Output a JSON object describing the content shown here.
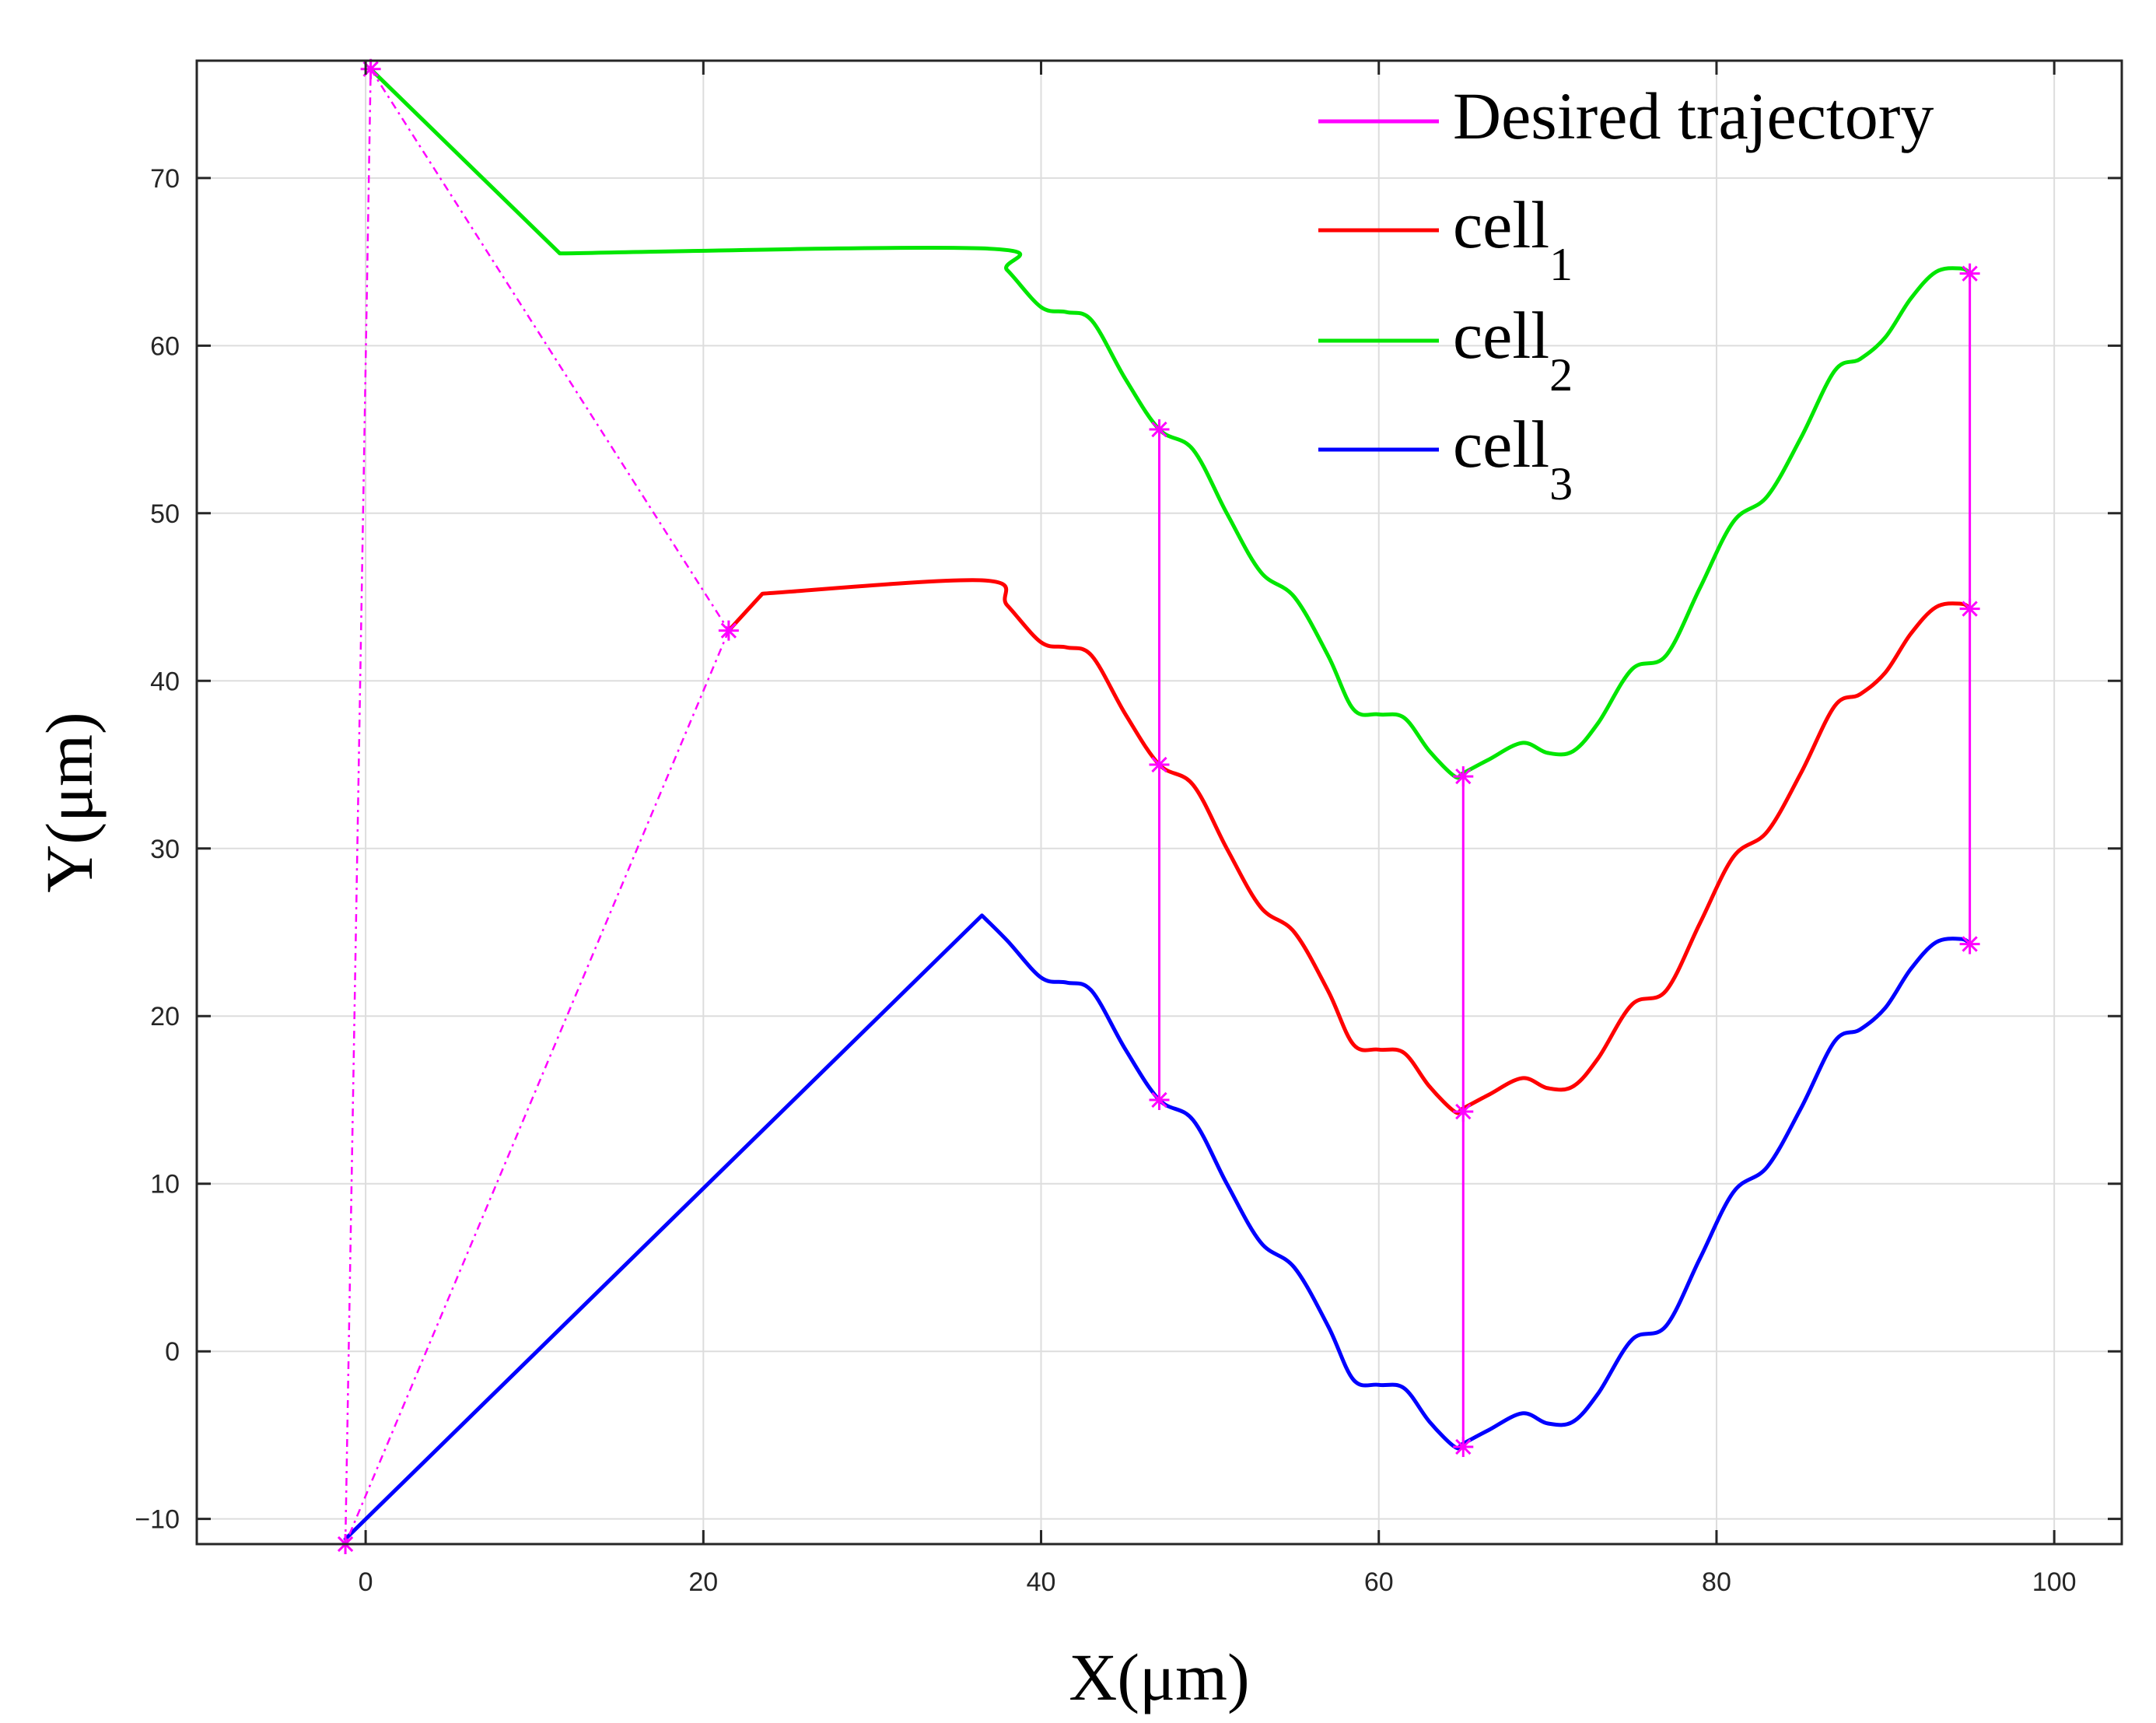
{
  "chart_data": {
    "type": "line",
    "title": "",
    "xlabel": "X(μm)",
    "ylabel": "Y(μm)",
    "xlim": [
      -10,
      104
    ],
    "ylim": [
      -11.5,
      77
    ],
    "grid": true,
    "legend_position": "top-right",
    "x_ticks": [
      0,
      20,
      40,
      60,
      80,
      100
    ],
    "y_ticks": [
      -10,
      0,
      10,
      20,
      30,
      40,
      50,
      60,
      70
    ],
    "legend": [
      {
        "key": "desired",
        "text": "Desired trajectory",
        "sub": ""
      },
      {
        "key": "cell1",
        "text": "cell",
        "sub": "1"
      },
      {
        "key": "cell2",
        "text": "cell",
        "sub": "2"
      },
      {
        "key": "cell3",
        "text": "cell",
        "sub": "3"
      }
    ],
    "series": [
      {
        "name": "cell_2",
        "key": "cell2",
        "color": "#00e600",
        "x": [
          0.3,
          11.5,
          36.5,
          38,
          40,
          41.5,
          43,
          45,
          47,
          49,
          51,
          53,
          55,
          57,
          58.5,
          60,
          61.5,
          63,
          64.5,
          65,
          66.5,
          68.5,
          70,
          71.5,
          73,
          75,
          77,
          79,
          81,
          83,
          85,
          87,
          88.5,
          90,
          91.5,
          93,
          94.5,
          95
        ],
        "y": [
          76.5,
          65.5,
          65.8,
          64.5,
          62.3,
          62.0,
          61.5,
          58.0,
          55.0,
          53.8,
          50.0,
          46.5,
          45.0,
          41.5,
          38.3,
          38.0,
          37.8,
          35.8,
          34.3,
          34.5,
          35.3,
          36.3,
          35.7,
          35.8,
          37.5,
          40.7,
          41.5,
          45.5,
          49.5,
          51.0,
          54.5,
          58.5,
          59.2,
          60.5,
          62.8,
          64.4,
          64.6,
          64.3
        ]
      },
      {
        "name": "cell_1",
        "key": "cell1",
        "color": "#ff0000",
        "x": [
          21.5,
          23.5,
          36.5,
          38,
          40,
          41.5,
          43,
          45,
          47,
          49,
          51,
          53,
          55,
          57,
          58.5,
          60,
          61.5,
          63,
          64.5,
          65,
          66.5,
          68.5,
          70,
          71.5,
          73,
          75,
          77,
          79,
          81,
          83,
          85,
          87,
          88.5,
          90,
          91.5,
          93,
          94.5,
          95
        ],
        "y": [
          43.0,
          45.2,
          46.0,
          44.5,
          42.3,
          42.0,
          41.5,
          38.0,
          35.0,
          33.8,
          30.0,
          26.5,
          25.0,
          21.5,
          18.3,
          18.0,
          17.8,
          15.8,
          14.3,
          14.5,
          15.3,
          16.3,
          15.7,
          15.8,
          17.5,
          20.7,
          21.5,
          25.5,
          29.5,
          31.0,
          34.5,
          38.5,
          39.2,
          40.5,
          42.8,
          44.4,
          44.6,
          44.3
        ]
      },
      {
        "name": "cell_3",
        "key": "cell3",
        "color": "#0000ff",
        "x": [
          -1.2,
          36.5,
          38,
          40,
          41.5,
          43,
          45,
          47,
          49,
          51,
          53,
          55,
          57,
          58.5,
          60,
          61.5,
          63,
          64.5,
          65,
          66.5,
          68.5,
          70,
          71.5,
          73,
          75,
          77,
          79,
          81,
          83,
          85,
          87,
          88.5,
          90,
          91.5,
          93,
          94.5,
          95
        ],
        "y": [
          -11.2,
          26.0,
          24.5,
          22.3,
          22.0,
          21.5,
          18.0,
          15.0,
          13.8,
          10.0,
          6.5,
          5.0,
          1.5,
          -1.7,
          -2.0,
          -2.2,
          -4.2,
          -5.7,
          -5.5,
          -4.7,
          -3.7,
          -4.3,
          -4.2,
          -2.5,
          0.7,
          1.5,
          5.5,
          9.5,
          11.0,
          14.5,
          18.5,
          19.2,
          20.5,
          22.8,
          24.4,
          24.6,
          24.3
        ]
      },
      {
        "name": "Desired trajectory",
        "key": "desired",
        "color": "#ff00ff",
        "points": [
          [
            0.3,
            76.5
          ],
          [
            21.5,
            43.0
          ],
          [
            -1.2,
            -11.5
          ],
          [
            47.0,
            55.0
          ],
          [
            47.0,
            35.0
          ],
          [
            47.0,
            15.0
          ],
          [
            65.0,
            34.3
          ],
          [
            65.0,
            14.3
          ],
          [
            65.0,
            -5.7
          ],
          [
            95.0,
            64.3
          ],
          [
            95.0,
            44.3
          ],
          [
            95.0,
            24.3
          ]
        ],
        "dashed_links": [
          [
            0,
            1
          ],
          [
            1,
            2
          ],
          [
            2,
            0
          ]
        ],
        "solid_links": [
          [
            3,
            4
          ],
          [
            4,
            5
          ],
          [
            6,
            7
          ],
          [
            7,
            8
          ],
          [
            9,
            10
          ],
          [
            10,
            11
          ]
        ]
      }
    ]
  }
}
